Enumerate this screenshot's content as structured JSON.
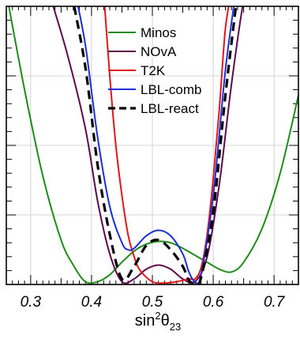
{
  "chart_data": {
    "type": "line",
    "xlabel": "sin²θ₂₃",
    "xlabel_parts": {
      "base": "sin",
      "sup": "2",
      "main": "θ",
      "sub": "23"
    },
    "xlim": [
      0.26,
      0.74
    ],
    "ylim": [
      0,
      10
    ],
    "x_ticks": [
      0.3,
      0.4,
      0.5,
      0.6,
      0.7
    ],
    "x_tick_labels": [
      "0.3",
      "0.4",
      "0.5",
      "0.6",
      "0.7"
    ],
    "y_tick_labels_visible": false,
    "grid": true,
    "legend_position": "top-center",
    "series": [
      {
        "name": "Minos",
        "color": "#1f8c1a",
        "dash": "solid",
        "x": [
          0.26,
          0.29,
          0.32,
          0.35,
          0.37,
          0.39,
          0.41,
          0.43,
          0.45,
          0.47,
          0.49,
          0.51,
          0.53,
          0.55,
          0.57,
          0.59,
          0.61,
          0.63,
          0.65,
          0.68,
          0.71,
          0.74
        ],
        "y": [
          10.5,
          7.0,
          3.9,
          1.6,
          0.7,
          0.1,
          0.1,
          0.35,
          0.8,
          1.2,
          1.45,
          1.55,
          1.5,
          1.3,
          1.05,
          0.8,
          0.55,
          0.45,
          0.8,
          2.0,
          4.0,
          6.8
        ]
      },
      {
        "name": "NOvA",
        "color": "#5c0a4a",
        "dash": "solid",
        "x": [
          0.33,
          0.36,
          0.39,
          0.41,
          0.43,
          0.45,
          0.47,
          0.49,
          0.51,
          0.53,
          0.55,
          0.57,
          0.59,
          0.61,
          0.63,
          0.65,
          0.66
        ],
        "y": [
          10.5,
          8.3,
          5.6,
          3.0,
          1.1,
          0.1,
          0.2,
          0.55,
          0.7,
          0.55,
          0.2,
          0.1,
          1.0,
          3.6,
          7.2,
          10.2,
          10.5
        ]
      },
      {
        "name": "T2K",
        "color": "#e0161c",
        "dash": "solid",
        "x": [
          0.42,
          0.43,
          0.44,
          0.45,
          0.46,
          0.47,
          0.48,
          0.5,
          0.52,
          0.54,
          0.56,
          0.57,
          0.58,
          0.59,
          0.6,
          0.61,
          0.62,
          0.63
        ],
        "y": [
          10.5,
          7.5,
          5.0,
          3.2,
          1.8,
          1.0,
          0.5,
          0.1,
          0.05,
          0.1,
          0.2,
          0.2,
          0.6,
          1.8,
          3.8,
          6.3,
          9.2,
          10.5
        ]
      },
      {
        "name": "LBL-comb",
        "color": "#1d2fd8",
        "dash": "solid",
        "x": [
          0.373,
          0.39,
          0.41,
          0.43,
          0.45,
          0.46,
          0.47,
          0.49,
          0.51,
          0.53,
          0.55,
          0.56,
          0.57,
          0.58,
          0.6,
          0.62,
          0.637
        ],
        "y": [
          10.5,
          8.6,
          5.3,
          2.8,
          1.5,
          1.25,
          1.3,
          1.75,
          1.95,
          1.75,
          1.1,
          0.45,
          0.1,
          0.35,
          3.2,
          7.7,
          10.5
        ]
      },
      {
        "name": "LBL-react",
        "color": "#000000",
        "dash": "dashed",
        "x": [
          0.367,
          0.39,
          0.41,
          0.43,
          0.45,
          0.47,
          0.49,
          0.51,
          0.53,
          0.55,
          0.56,
          0.57,
          0.58,
          0.6,
          0.62,
          0.64
        ],
        "y": [
          10.5,
          7.8,
          4.3,
          1.8,
          0.2,
          0.65,
          1.4,
          1.6,
          1.25,
          0.65,
          0.15,
          0.05,
          0.25,
          2.6,
          6.8,
          10.5
        ]
      }
    ]
  }
}
